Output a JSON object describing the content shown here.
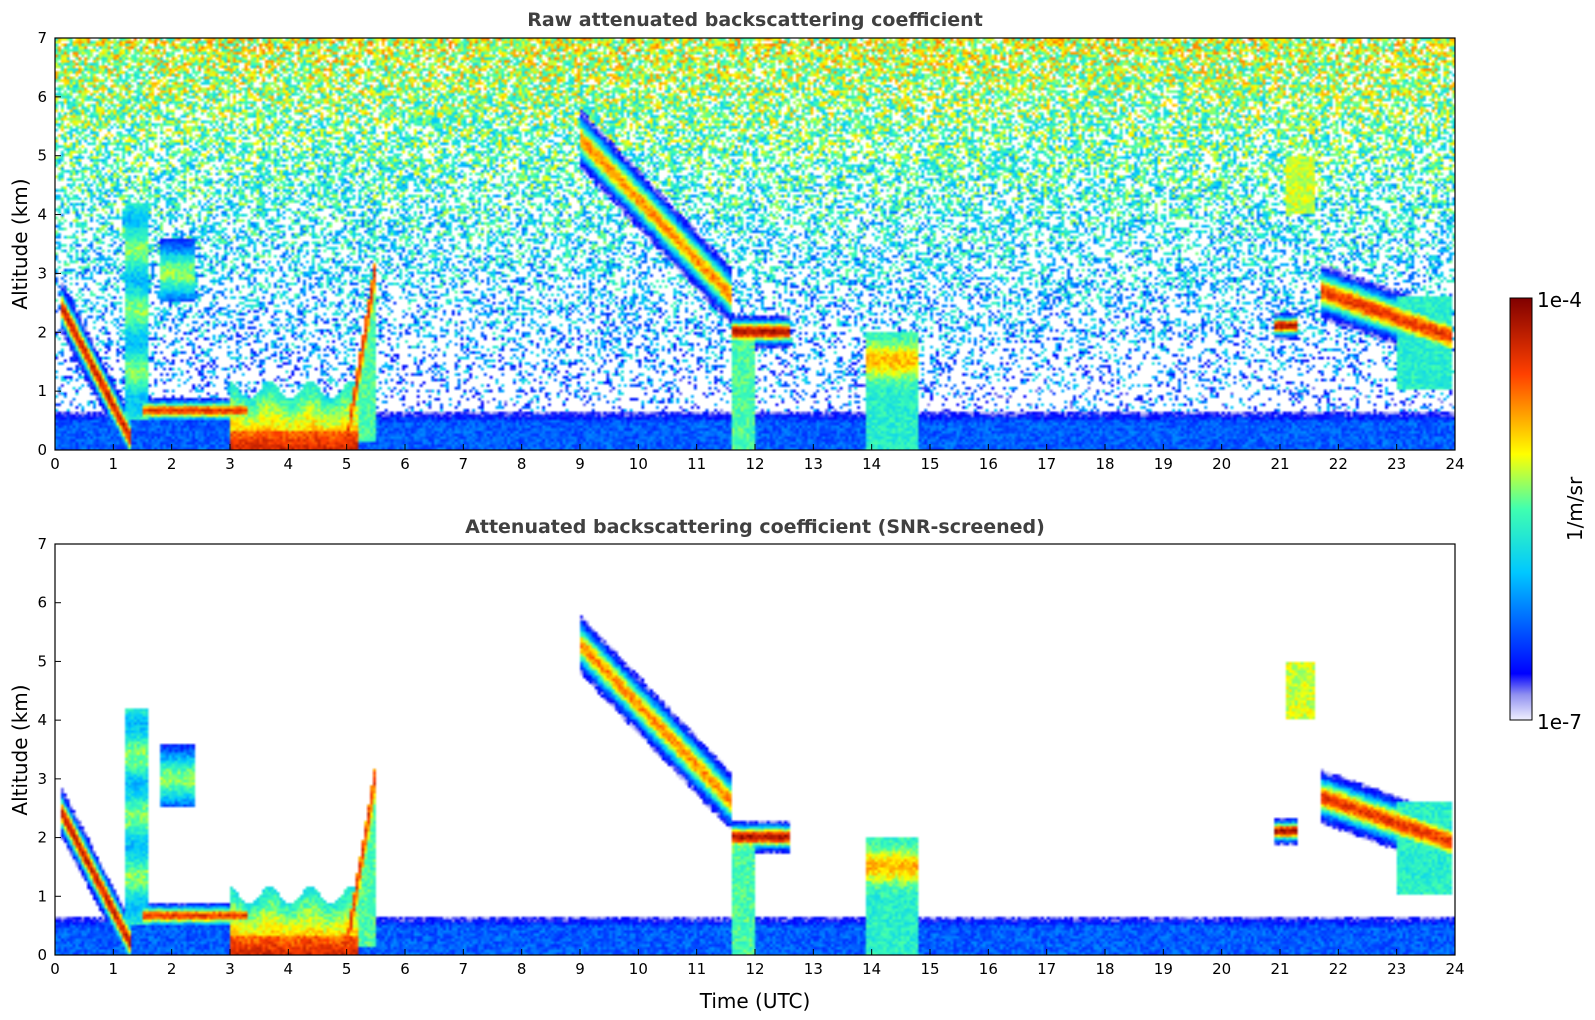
{
  "chart_data": [
    {
      "type": "heatmap",
      "title": "Raw attenuated backscattering coefficient",
      "xlabel": "",
      "ylabel": "Altitude (km)",
      "xlim": [
        0,
        24
      ],
      "ylim": [
        0,
        7
      ],
      "x_ticks": [
        "0",
        "1",
        "2",
        "3",
        "4",
        "5",
        "6",
        "7",
        "8",
        "9",
        "10",
        "11",
        "12",
        "13",
        "14",
        "15",
        "16",
        "17",
        "18",
        "19",
        "20",
        "21",
        "22",
        "23",
        "24"
      ],
      "y_ticks": [
        "0",
        "1",
        "2",
        "3",
        "4",
        "5",
        "6",
        "7"
      ],
      "screened": false,
      "features": [
        {
          "name": "boundary-layer aerosol",
          "t_start": 0,
          "t_end": 24,
          "alt_top": 0.5,
          "level": "low"
        },
        {
          "name": "descending cloud",
          "t_start": 0.1,
          "t_end": 1.3,
          "alt_start": 2.4,
          "alt_end": 0.1,
          "level": "high"
        },
        {
          "name": "cloud column",
          "t_start": 1.2,
          "t_end": 1.6,
          "alt_range": [
            0.5,
            4.2
          ],
          "level": "mid"
        },
        {
          "name": "aloft layer",
          "t_start": 1.8,
          "t_end": 2.4,
          "alt_range": [
            2.5,
            3.6
          ],
          "level": "mid"
        },
        {
          "name": "low stratus",
          "t_start": 1.5,
          "t_end": 3.3,
          "alt_range": [
            0.5,
            0.9
          ],
          "level": "high"
        },
        {
          "name": "dense low cloud",
          "t_start": 3.0,
          "t_end": 5.2,
          "alt_range": [
            0.0,
            1.2
          ],
          "level": "very-high"
        },
        {
          "name": "rising cloud",
          "t_start": 5.0,
          "t_end": 5.5,
          "alt_range": [
            0.2,
            3.2
          ],
          "level": "high"
        },
        {
          "name": "cirrus fall streak",
          "t_start": 9.0,
          "t_end": 11.6,
          "alt_start": 5.3,
          "alt_end": 2.6,
          "level": "high"
        },
        {
          "name": "cloud",
          "t_start": 11.6,
          "t_end": 12.6,
          "alt_range": [
            1.6,
            2.2
          ],
          "level": "very-high"
        },
        {
          "name": "convective column",
          "t_start": 13.9,
          "t_end": 14.8,
          "alt_range": [
            0.0,
            2.0
          ],
          "level": "mid"
        },
        {
          "name": "mid cloud",
          "t_start": 20.9,
          "t_end": 21.3,
          "alt_range": [
            1.9,
            2.3
          ],
          "level": "very-high"
        },
        {
          "name": "aloft patch",
          "t_start": 21.1,
          "t_end": 21.6,
          "alt_range": [
            4.0,
            5.0
          ],
          "level": "mid"
        },
        {
          "name": "cloud layer",
          "t_start": 21.7,
          "t_end": 24.0,
          "alt_range": [
            1.0,
            3.0
          ],
          "level": "high"
        }
      ]
    },
    {
      "type": "heatmap",
      "title": "Attenuated backscattering coefficient (SNR-screened)",
      "xlabel": "Time (UTC)",
      "ylabel": "Altitude (km)",
      "xlim": [
        0,
        24
      ],
      "ylim": [
        0,
        7
      ],
      "x_ticks": [
        "0",
        "1",
        "2",
        "3",
        "4",
        "5",
        "6",
        "7",
        "8",
        "9",
        "10",
        "11",
        "12",
        "13",
        "14",
        "15",
        "16",
        "17",
        "18",
        "19",
        "20",
        "21",
        "22",
        "23",
        "24"
      ],
      "y_ticks": [
        "0",
        "1",
        "2",
        "3",
        "4",
        "5",
        "6",
        "7"
      ],
      "screened": true
    }
  ],
  "colorbar": {
    "label": "1/m/sr",
    "min_label": "1e-7",
    "max_label": "1e-4",
    "colormap": "jet"
  }
}
